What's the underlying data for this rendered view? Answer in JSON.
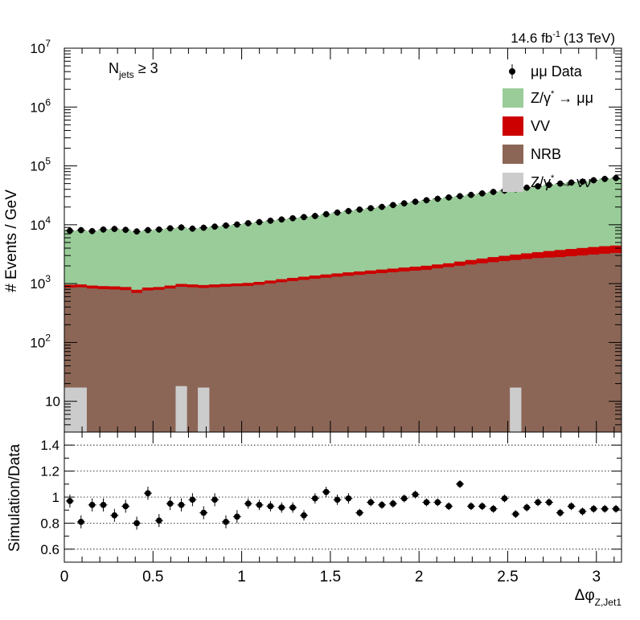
{
  "chart_data": [
    {
      "type": "histogram",
      "ylabel": "# Events / GeV",
      "lumi": {
        "value": "14.6 fb",
        "exp": "-1",
        "energy": "(13 TeV)"
      },
      "selection": {
        "main": "N",
        "sub": "jets",
        "rest": "≥ 3"
      },
      "xlim": [
        0,
        3.1416
      ],
      "ylim": [
        3,
        10000000
      ],
      "yscale": "log",
      "legend_position": "top-right",
      "y_ticks": [
        {
          "value": 10,
          "label": "10"
        },
        {
          "value": 100,
          "label": "10",
          "exp": "2"
        },
        {
          "value": 1000,
          "label": "10",
          "exp": "3"
        },
        {
          "value": 10000,
          "label": "10",
          "exp": "4"
        },
        {
          "value": 100000,
          "label": "10",
          "exp": "5"
        },
        {
          "value": 1000000,
          "label": "10",
          "exp": "6"
        },
        {
          "value": 10000000,
          "label": "10",
          "exp": "7"
        }
      ],
      "legend": [
        {
          "key": "data",
          "label": "μμ Data",
          "style": "marker"
        },
        {
          "key": "dy",
          "label": "Z/γ",
          "sup": "*",
          "rest": " → μμ",
          "style": "fill",
          "color": "#99cc99"
        },
        {
          "key": "vv",
          "label": "VV",
          "style": "fill",
          "color": "#cc0000"
        },
        {
          "key": "nrb",
          "label": "NRB",
          "style": "fill",
          "color": "#8b6656"
        },
        {
          "key": "znn",
          "label": "Z/γ",
          "sup": "*",
          "rest": " → νν",
          "style": "fill",
          "color": "#cccccc"
        }
      ],
      "colors": {
        "dy": "#99cc99",
        "vv": "#cc0000",
        "nrb": "#8b6656",
        "znn": "#cccccc",
        "data": "#000000"
      },
      "n_bins": 50,
      "bin_width": 0.06283,
      "series": [
        {
          "name": "Z/γ* → νν",
          "values": [
            17,
            17,
            0,
            0,
            0,
            0,
            0,
            0,
            0,
            0,
            18,
            0,
            17,
            0,
            0,
            0,
            0,
            0,
            0,
            0,
            0,
            0,
            0,
            0,
            0,
            0,
            0,
            0,
            0,
            0,
            0,
            0,
            0,
            0,
            0,
            0,
            0,
            0,
            0,
            0,
            17,
            0,
            0,
            0,
            0,
            0,
            0,
            0,
            0,
            0
          ]
        },
        {
          "name": "NRB",
          "values": [
            850,
            860,
            820,
            800,
            790,
            770,
            690,
            760,
            780,
            820,
            880,
            860,
            840,
            860,
            880,
            900,
            910,
            950,
            1000,
            1050,
            1100,
            1150,
            1200,
            1250,
            1300,
            1350,
            1400,
            1450,
            1500,
            1550,
            1600,
            1650,
            1700,
            1800,
            1900,
            2000,
            2100,
            2200,
            2300,
            2400,
            2500,
            2600,
            2700,
            2750,
            2800,
            2900,
            3000,
            3100,
            3200,
            3300
          ]
        },
        {
          "name": "VV",
          "values": [
            950,
            960,
            920,
            900,
            890,
            870,
            780,
            850,
            870,
            920,
            980,
            960,
            940,
            960,
            980,
            1000,
            1020,
            1060,
            1120,
            1180,
            1240,
            1300,
            1360,
            1420,
            1480,
            1540,
            1600,
            1660,
            1720,
            1790,
            1860,
            1930,
            2000,
            2100,
            2200,
            2350,
            2500,
            2650,
            2800,
            2950,
            3100,
            3250,
            3400,
            3550,
            3700,
            3850,
            4000,
            4150,
            4300,
            4400
          ]
        },
        {
          "name": "Z/γ* → μμ",
          "values": [
            7800,
            8000,
            7700,
            8200,
            8400,
            8100,
            7600,
            8000,
            8200,
            8600,
            8900,
            8500,
            8800,
            9200,
            9600,
            10000,
            10500,
            11000,
            11600,
            12200,
            12800,
            13400,
            14000,
            15000,
            16000,
            17000,
            18000,
            19000,
            20000,
            21500,
            23000,
            24500,
            26000,
            27500,
            29000,
            30500,
            32000,
            34000,
            36000,
            38000,
            40000,
            42500,
            45000,
            47500,
            50000,
            52000,
            54000,
            57000,
            60000,
            62000
          ]
        },
        {
          "name": "μμ Data",
          "values": [
            7900,
            8100,
            7800,
            8300,
            8500,
            8200,
            7700,
            8100,
            8300,
            8700,
            9000,
            8600,
            8900,
            9300,
            9700,
            10100,
            10600,
            11100,
            11700,
            12300,
            12900,
            13500,
            14100,
            15100,
            16100,
            17100,
            18100,
            19100,
            20100,
            21600,
            23100,
            24600,
            26100,
            27600,
            29100,
            30600,
            32100,
            34100,
            36100,
            38100,
            40100,
            42600,
            45100,
            47600,
            50100,
            52100,
            54100,
            57100,
            60100,
            62100
          ]
        }
      ]
    },
    {
      "type": "scatter",
      "ylabel": "Simulation/Data",
      "xlabel": "Δφ",
      "xlabel_sub": "Z,Jet1",
      "xlim": [
        0,
        3.1416
      ],
      "ylim": [
        0.5,
        1.5
      ],
      "y_ticks": [
        "0.6",
        "0.8",
        "1",
        "1.2",
        "1.4"
      ],
      "x_ticks": [
        "0",
        "0.5",
        "1",
        "1.5",
        "2",
        "2.5",
        "3"
      ],
      "gridlines_y": [
        0.6,
        0.8,
        1.0,
        1.2,
        1.4
      ],
      "x": [
        0.0314,
        0.0942,
        0.1571,
        0.2199,
        0.2827,
        0.3456,
        0.4084,
        0.4712,
        0.5341,
        0.5969,
        0.6597,
        0.7226,
        0.7854,
        0.8482,
        0.9111,
        0.9739,
        1.0367,
        1.0996,
        1.1624,
        1.2252,
        1.2881,
        1.3509,
        1.4137,
        1.4765,
        1.5394,
        1.6022,
        1.665,
        1.7279,
        1.7907,
        1.8535,
        1.9164,
        1.9792,
        2.042,
        2.1049,
        2.1677,
        2.2305,
        2.2934,
        2.3562,
        2.419,
        2.4819,
        2.5447,
        2.6075,
        2.6704,
        2.7332,
        2.796,
        2.8588,
        2.9217,
        2.9845,
        3.0473,
        3.1102
      ],
      "y": [
        0.97,
        0.81,
        0.94,
        0.94,
        0.86,
        0.93,
        0.8,
        1.03,
        0.82,
        0.95,
        0.94,
        0.98,
        0.88,
        0.98,
        0.81,
        0.85,
        0.95,
        0.94,
        0.93,
        0.92,
        0.92,
        0.86,
        0.99,
        1.04,
        0.98,
        0.99,
        0.88,
        0.96,
        0.94,
        0.95,
        0.99,
        1.02,
        0.96,
        0.96,
        0.93,
        1.1,
        0.93,
        0.93,
        0.91,
        0.99,
        0.87,
        0.92,
        0.96,
        0.96,
        0.88,
        0.93,
        0.89,
        0.91,
        0.91,
        0.91
      ],
      "yerr": [
        0.05,
        0.05,
        0.05,
        0.05,
        0.05,
        0.05,
        0.05,
        0.05,
        0.05,
        0.05,
        0.05,
        0.05,
        0.05,
        0.05,
        0.05,
        0.05,
        0.04,
        0.04,
        0.04,
        0.04,
        0.04,
        0.04,
        0.04,
        0.04,
        0.04,
        0.04,
        0.03,
        0.03,
        0.03,
        0.03,
        0.03,
        0.03,
        0.03,
        0.03,
        0.03,
        0.03,
        0.03,
        0.03,
        0.03,
        0.03,
        0.03,
        0.03,
        0.03,
        0.03,
        0.03,
        0.03,
        0.03,
        0.03,
        0.03,
        0.03
      ]
    }
  ]
}
